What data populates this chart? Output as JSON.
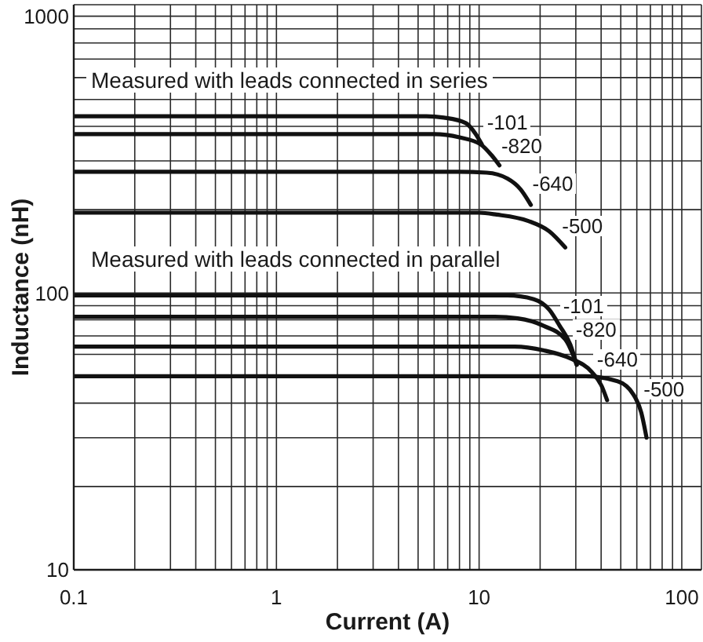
{
  "chart_data": {
    "type": "line",
    "xlabel": "Current (A)",
    "ylabel": "Inductance (nH)",
    "log": "xy",
    "grid": true,
    "legend": false,
    "line_style": "solid",
    "xlim": [
      0.1,
      125
    ],
    "xticks": [
      0.1,
      {
        "value": 0.2,
        "label": null
      },
      {
        "value": 0.3,
        "label": null
      },
      {
        "value": 0.4,
        "label": null
      },
      {
        "value": 0.5,
        "label": null
      },
      {
        "value": 0.6,
        "label": null
      },
      {
        "value": 0.7,
        "label": null
      },
      {
        "value": 0.8,
        "label": null
      },
      {
        "value": 0.9,
        "label": null
      },
      1,
      {
        "value": 2,
        "label": null
      },
      {
        "value": 3,
        "label": null
      },
      {
        "value": 4,
        "label": null
      },
      {
        "value": 5,
        "label": null
      },
      {
        "value": 6,
        "label": null
      },
      {
        "value": 7,
        "label": null
      },
      {
        "value": 8,
        "label": null
      },
      {
        "value": 9,
        "label": null
      },
      10,
      {
        "value": 20,
        "label": null
      },
      {
        "value": 30,
        "label": null
      },
      {
        "value": 40,
        "label": null
      },
      {
        "value": 50,
        "label": null
      },
      {
        "value": 60,
        "label": null
      },
      {
        "value": 70,
        "label": null
      },
      {
        "value": 80,
        "label": null
      },
      {
        "value": 90,
        "label": null
      },
      100
    ],
    "ylim": [
      10,
      1100
    ],
    "yticks": [
      10,
      {
        "value": 20,
        "label": null
      },
      {
        "value": 30,
        "label": null
      },
      {
        "value": 40,
        "label": null
      },
      {
        "value": 50,
        "label": null
      },
      {
        "value": 60,
        "label": null
      },
      {
        "value": 70,
        "label": null
      },
      {
        "value": 80,
        "label": null
      },
      {
        "value": 90,
        "label": null
      },
      100,
      {
        "value": 200,
        "label": null
      },
      {
        "value": 300,
        "label": null
      },
      {
        "value": 400,
        "label": null
      },
      {
        "value": 500,
        "label": null
      },
      {
        "value": 600,
        "label": null
      },
      {
        "value": 700,
        "label": null
      },
      {
        "value": 800,
        "label": null
      },
      {
        "value": 900,
        "label": null
      },
      1000
    ],
    "annotations": [
      "Measured with leads connected in series",
      "Measured with leads connected in parallel"
    ],
    "series": [
      {
        "name": "-101",
        "color": "#111111",
        "x": [
          0.1,
          5.5,
          6.7,
          8.6,
          9.6,
          10.3
        ],
        "values": [
          435,
          435,
          430,
          411,
          376,
          345
        ]
      },
      {
        "name": "-820",
        "color": "#111111",
        "x": [
          0.1,
          6,
          8,
          10.2,
          11.5,
          12.6
        ],
        "values": [
          375,
          375,
          365,
          344,
          315,
          289
        ]
      },
      {
        "name": "-640",
        "color": "#111111",
        "x": [
          0.1,
          8,
          10.9,
          13.8,
          16,
          18
        ],
        "values": [
          274,
          274,
          272,
          259,
          237,
          208
        ]
      },
      {
        "name": "-500",
        "color": "#111111",
        "x": [
          0.1,
          10,
          12.2,
          17.5,
          22.2,
          26.6
        ],
        "values": [
          195,
          195,
          192,
          182,
          167,
          146
        ]
      },
      {
        "name": "-101",
        "color": "#111111",
        "x": [
          0.1,
          10,
          13.8,
          18.6,
          22.2,
          25,
          28.2,
          30.3
        ],
        "values": [
          98,
          98,
          98,
          95,
          87,
          76,
          65,
          55
        ]
      },
      {
        "name": "-820",
        "color": "#111111",
        "x": [
          0.1,
          12,
          15.5,
          20.9,
          26.6,
          29,
          30.3
        ],
        "values": [
          82,
          82,
          81,
          76,
          68,
          60,
          55
        ]
      },
      {
        "name": "-640",
        "color": "#111111",
        "x": [
          0.1,
          15,
          20.9,
          28.2,
          35.8,
          40.3,
          42.8
        ],
        "values": [
          64,
          64,
          62,
          58,
          52,
          46,
          41
        ]
      },
      {
        "name": "-500",
        "color": "#111111",
        "x": [
          0.1,
          25,
          33.7,
          48.2,
          57.7,
          63.1,
          67
        ],
        "values": [
          50,
          50,
          50,
          48,
          43,
          37,
          30
        ]
      }
    ]
  }
}
